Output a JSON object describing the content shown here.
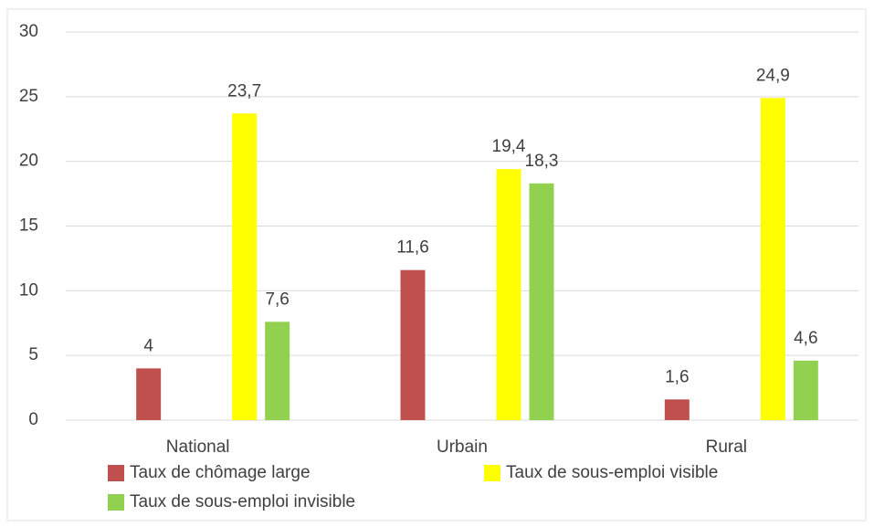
{
  "chart_data": {
    "type": "bar",
    "categories": [
      "National",
      "Urbain",
      "Rural"
    ],
    "series": [
      {
        "name": "Taux de chômage large",
        "color": "#c0504d",
        "values": [
          4,
          11.6,
          1.6
        ],
        "value_labels": [
          "4",
          "11,6",
          "1,6"
        ]
      },
      {
        "name": "Taux de sous-emploi visible",
        "color": "#ffff00",
        "values": [
          23.7,
          19.4,
          24.9
        ],
        "value_labels": [
          "23,7",
          "19,4",
          "24,9"
        ]
      },
      {
        "name": "Taux de sous-emploi invisible",
        "color": "#92d050",
        "values": [
          7.6,
          18.3,
          4.6
        ],
        "value_labels": [
          "7,6",
          "18,3",
          "4,6"
        ]
      }
    ],
    "ylim": [
      0,
      30
    ],
    "yticks": [
      0,
      5,
      10,
      15,
      20,
      25,
      30
    ],
    "grid": true,
    "legend": "bottom"
  }
}
